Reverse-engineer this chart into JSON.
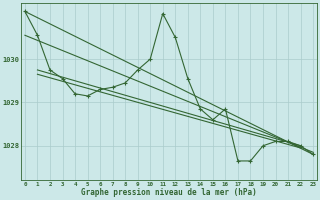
{
  "background_color": "#cce8e8",
  "grid_color": "#aacccc",
  "line_color": "#336633",
  "title": "Graphe pression niveau de la mer (hPa)",
  "hours": [
    0,
    1,
    2,
    3,
    4,
    5,
    6,
    7,
    8,
    9,
    10,
    11,
    12,
    13,
    14,
    15,
    16,
    17,
    18,
    19,
    20,
    21,
    22,
    23
  ],
  "yticks": [
    1028,
    1029,
    1030
  ],
  "ylim": [
    1027.2,
    1031.3
  ],
  "xlim": [
    -0.3,
    23.3
  ],
  "main_series": [
    1031.1,
    1030.55,
    1029.75,
    1029.55,
    1029.2,
    1029.15,
    1029.3,
    1029.35,
    1029.45,
    1029.75,
    1030.0,
    1031.05,
    1030.5,
    1029.55,
    1028.85,
    1028.6,
    1028.85,
    1027.65,
    1027.65,
    1028.0,
    1028.1,
    1028.1,
    1028.0,
    1027.8
  ],
  "trend1": {
    "x": [
      0,
      23
    ],
    "y": [
      1031.1,
      1027.8
    ]
  },
  "trend2": {
    "x": [
      0,
      23
    ],
    "y": [
      1030.55,
      1027.85
    ]
  },
  "trend3": {
    "x": [
      1,
      22
    ],
    "y": [
      1029.75,
      1028.0
    ]
  },
  "trend4": {
    "x": [
      1,
      22
    ],
    "y": [
      1029.65,
      1027.95
    ]
  }
}
